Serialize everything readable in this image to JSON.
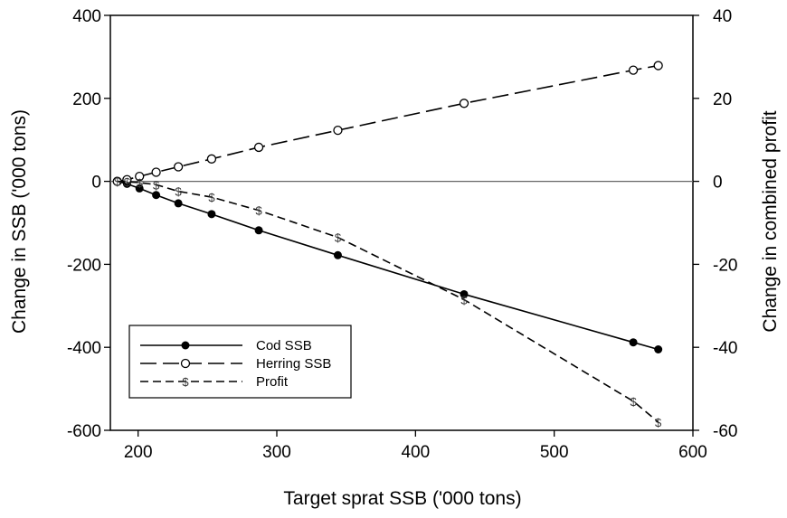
{
  "chart_data": {
    "type": "line",
    "xlabel": "Target sprat SSB ('000 tons)",
    "ylabel": "Change in SSB ('000 tons)",
    "y2label": "Change in combined profit",
    "xlim": [
      180,
      600
    ],
    "ylim": [
      -600,
      400
    ],
    "y2lim": [
      -60,
      40
    ],
    "xticks": [
      "200",
      "300",
      "400",
      "500",
      "600"
    ],
    "yticks": [
      "400",
      "200",
      "0",
      "-200",
      "-400",
      "-600"
    ],
    "y2ticks": [
      "40",
      "20",
      "0",
      "-20",
      "-40",
      "-60"
    ],
    "grid": false,
    "zero_line": true,
    "legend_position": "bottom-left",
    "series": [
      {
        "name": "Cod SSB",
        "axis": "left",
        "style": "solid",
        "marker": "filled-circle",
        "x": [
          185,
          192,
          201,
          213,
          229,
          253,
          287,
          344,
          435,
          557,
          575
        ],
        "y": [
          0,
          -6,
          -17,
          -33,
          -53,
          -79,
          -118,
          -178,
          -272,
          -388,
          -405
        ]
      },
      {
        "name": "Herring SSB",
        "axis": "left",
        "style": "long-dash",
        "marker": "open-circle",
        "x": [
          185,
          192,
          201,
          213,
          229,
          253,
          287,
          344,
          435,
          557,
          575
        ],
        "y": [
          0,
          4,
          12,
          22,
          35,
          54,
          82,
          123,
          188,
          268,
          279
        ]
      },
      {
        "name": "Profit",
        "axis": "right",
        "style": "short-dash",
        "marker": "$",
        "x": [
          185,
          192,
          201,
          213,
          229,
          253,
          287,
          344,
          435,
          557,
          575
        ],
        "y": [
          0,
          -0.1,
          -0.3,
          -0.8,
          -2.4,
          -3.8,
          -7,
          -13.5,
          -28.5,
          -53,
          -58
        ]
      }
    ]
  }
}
